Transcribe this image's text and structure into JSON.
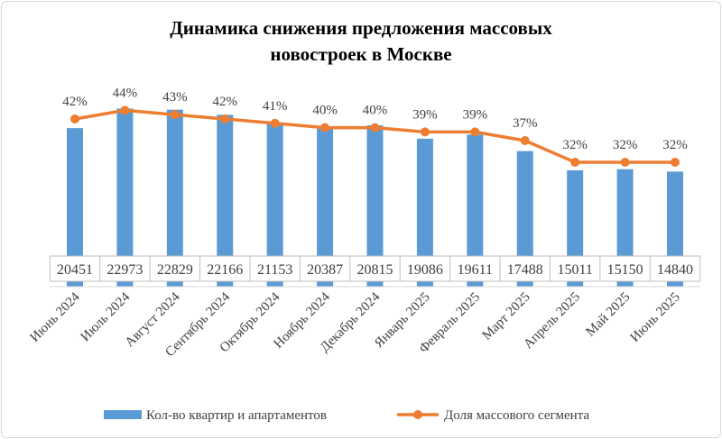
{
  "chart_data": {
    "type": "bar+line",
    "title": [
      "Динамика снижения предложения массовых",
      "новостроек в Москве"
    ],
    "categories": [
      "Июнь 2024",
      "Июль 2024",
      "Август 2024",
      "Сентябрь 2024",
      "Октябрь 2024",
      "Ноябрь 2024",
      "Декабрь 2024",
      "Январь 2025",
      "Февраль 2025",
      "Март 2025",
      "Апрель 2025",
      "Май 2025",
      "Июнь 2025"
    ],
    "series": [
      {
        "name": "Кол-во квартир и апартаментов",
        "type": "bar",
        "color": "#5b9bd5",
        "values": [
          20451,
          22973,
          22829,
          22166,
          21153,
          20387,
          20815,
          19086,
          19611,
          17488,
          15011,
          15150,
          14840
        ]
      },
      {
        "name": "Доля массового сегмента",
        "type": "line",
        "color": "#ed7d31",
        "values": [
          42,
          44,
          43,
          42,
          41,
          40,
          40,
          39,
          39,
          37,
          32,
          32,
          32
        ],
        "labels": [
          "42%",
          "44%",
          "43%",
          "42%",
          "41%",
          "40%",
          "40%",
          "39%",
          "39%",
          "37%",
          "32%",
          "32%",
          "32%"
        ]
      }
    ],
    "ylim": [
      0,
      30000
    ],
    "y2lim": [
      0,
      100
    ],
    "axes_visible": false,
    "grid": false,
    "data_table": true,
    "legend": "bottom"
  }
}
